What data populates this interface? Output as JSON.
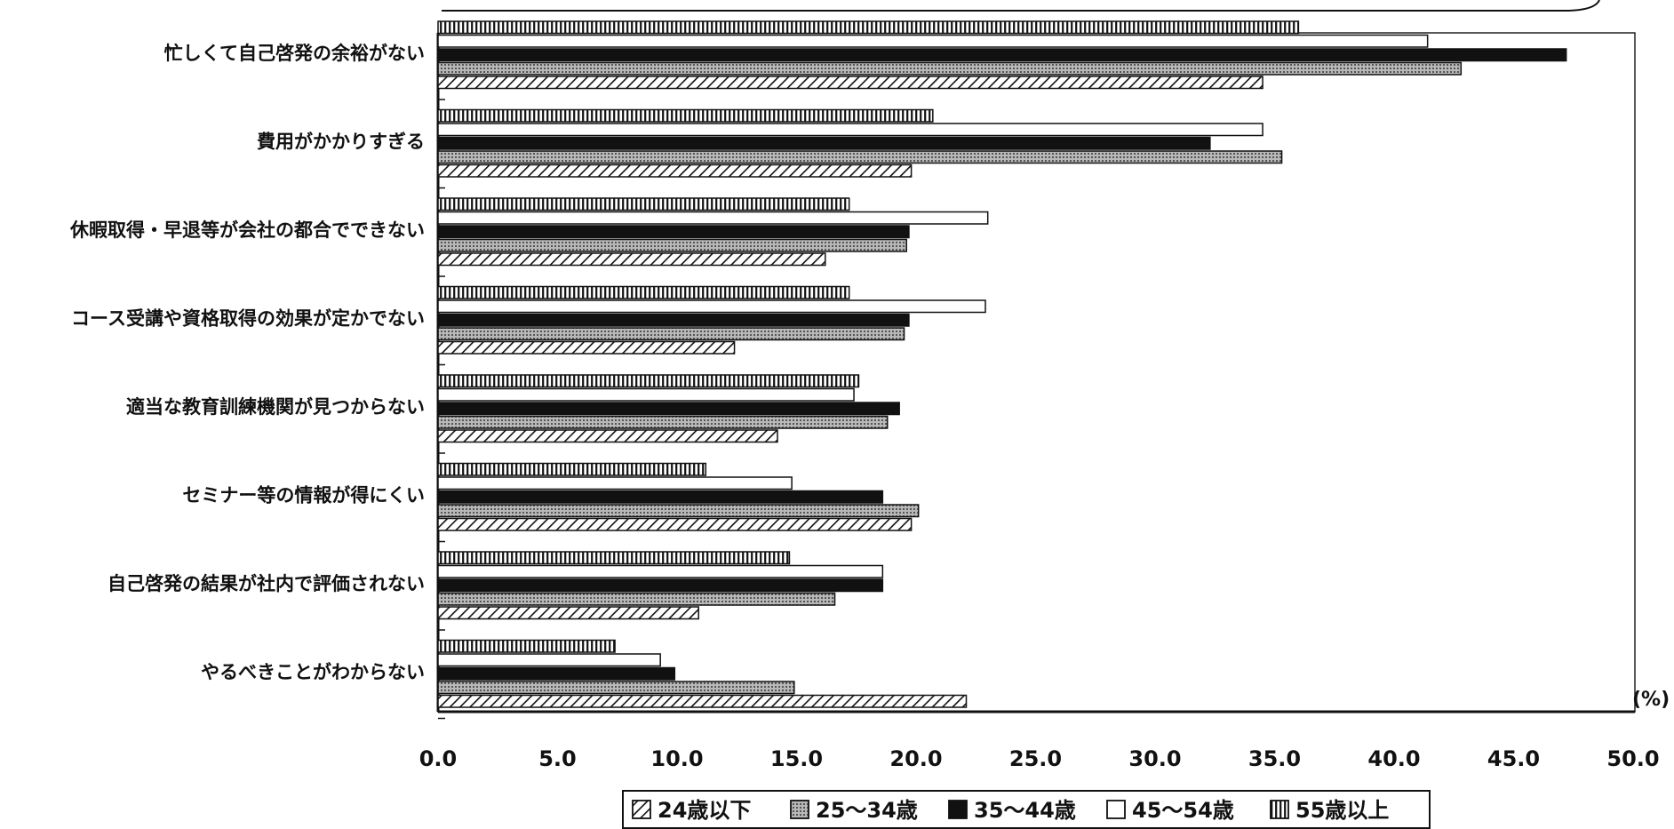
{
  "chart_data": {
    "type": "bar",
    "orientation": "horizontal",
    "unit": "(%)",
    "categories": [
      "忙しくて自己啓発の余裕がない",
      "費用がかかりすぎる",
      "休暇取得・早退等が会社の都合でできない",
      "コース受講や資格取得の効果が定かでない",
      "適当な教育訓練機関が見つからない",
      "セミナー等の情報が得にくい",
      "自己啓発の結果が社内で評価されない",
      "やるべきことがわからない"
    ],
    "series": [
      {
        "name": "24歳以下",
        "pattern": "diagonal-hatch",
        "values": [
          34.5,
          19.8,
          16.2,
          12.4,
          14.2,
          19.8,
          10.9,
          22.1
        ]
      },
      {
        "name": "25～34歳",
        "pattern": "dotted-gray",
        "values": [
          42.8,
          35.3,
          19.6,
          19.5,
          18.8,
          20.1,
          16.6,
          14.9
        ]
      },
      {
        "name": "35～44歳",
        "pattern": "solid-black",
        "values": [
          47.2,
          32.3,
          19.7,
          19.7,
          19.3,
          18.6,
          18.6,
          9.9
        ]
      },
      {
        "name": "45～54歳",
        "pattern": "white",
        "values": [
          41.4,
          34.5,
          23.0,
          22.9,
          17.4,
          14.8,
          18.6,
          9.3
        ]
      },
      {
        "name": "55歳以上",
        "pattern": "vertical-stripes",
        "values": [
          36.0,
          20.7,
          17.2,
          17.2,
          17.6,
          11.2,
          14.7,
          7.4
        ]
      }
    ],
    "xlim": [
      0,
      50
    ],
    "xticks": [
      "0.0",
      "5.0",
      "10.0",
      "15.0",
      "20.0",
      "25.0",
      "30.0",
      "35.0",
      "40.0",
      "45.0",
      "50.0"
    ],
    "legend_position": "bottom",
    "grid": false
  }
}
